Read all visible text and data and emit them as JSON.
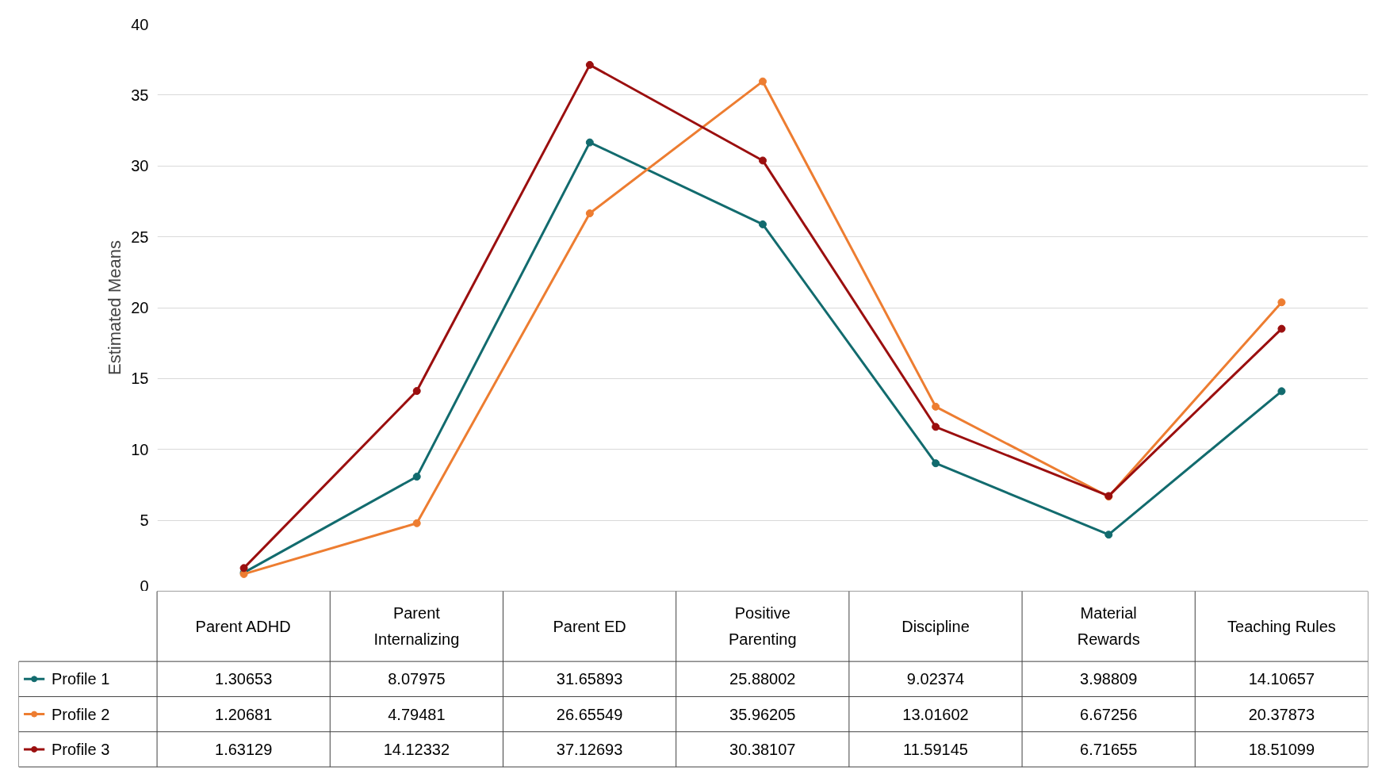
{
  "chart_data": {
    "type": "line",
    "ylabel": "Estimated Means",
    "categories": [
      "Parent ADHD",
      "Parent Internalizing",
      "Parent ED",
      "Positive Parenting",
      "Discipline",
      "Material Rewards",
      "Teaching Rules"
    ],
    "series": [
      {
        "name": "Profile 1",
        "color": "#126b6e",
        "values": [
          1.30653,
          8.07975,
          31.65893,
          25.88002,
          9.02374,
          3.98809,
          14.10657
        ]
      },
      {
        "name": "Profile 2",
        "color": "#ed7d31",
        "values": [
          1.20681,
          4.79481,
          26.65549,
          35.96205,
          13.01602,
          6.67256,
          20.37873
        ]
      },
      {
        "name": "Profile 3",
        "color": "#9b0f0f",
        "values": [
          1.63129,
          14.12332,
          37.12693,
          30.38107,
          11.59145,
          6.71655,
          18.51099
        ]
      }
    ],
    "ylim": [
      0,
      40
    ],
    "yticks": [
      0,
      5,
      10,
      15,
      20,
      25,
      30,
      35,
      40
    ],
    "grid": "y",
    "tick_labels": "y",
    "marker": "circle",
    "line_style": "solid",
    "legend": "bottom",
    "data_labels": true
  }
}
